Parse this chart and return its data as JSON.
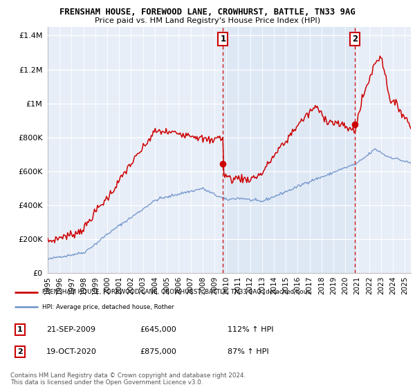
{
  "title_line1": "FRENSHAM HOUSE, FOREWOOD LANE, CROWHURST, BATTLE, TN33 9AG",
  "title_line2": "Price paid vs. HM Land Registry's House Price Index (HPI)",
  "bg_color": "#ffffff",
  "plot_bg_color": "#e8eef8",
  "shade_color": "#dde8f5",
  "grid_color": "#cccccc",
  "red_color": "#cc0000",
  "blue_color": "#7799cc",
  "marker1_date_x": 2009.72,
  "marker1_y": 645000,
  "marker2_date_x": 2020.79,
  "marker2_y": 875000,
  "legend_red_label": "FRENSHAM HOUSE, FOREWOOD LANE, CROWHURST, BATTLE, TN33 9AG (detached hous",
  "legend_blue_label": "HPI: Average price, detached house, Rother",
  "annotation1_label": "1",
  "annotation1_date": "21-SEP-2009",
  "annotation1_price": "£645,000",
  "annotation1_hpi": "112% ↑ HPI",
  "annotation2_label": "2",
  "annotation2_date": "19-OCT-2020",
  "annotation2_price": "£875,000",
  "annotation2_hpi": "87% ↑ HPI",
  "footer": "Contains HM Land Registry data © Crown copyright and database right 2024.\nThis data is licensed under the Open Government Licence v3.0.",
  "ylim": [
    0,
    1450000
  ],
  "yticks": [
    0,
    200000,
    400000,
    600000,
    800000,
    1000000,
    1200000,
    1400000
  ],
  "xmin": 1995.0,
  "xmax": 2025.5,
  "xticks": [
    1995,
    1996,
    1997,
    1998,
    1999,
    2000,
    2001,
    2002,
    2003,
    2004,
    2005,
    2006,
    2007,
    2008,
    2009,
    2010,
    2011,
    2012,
    2013,
    2014,
    2015,
    2016,
    2017,
    2018,
    2019,
    2020,
    2021,
    2022,
    2023,
    2024,
    2025
  ]
}
